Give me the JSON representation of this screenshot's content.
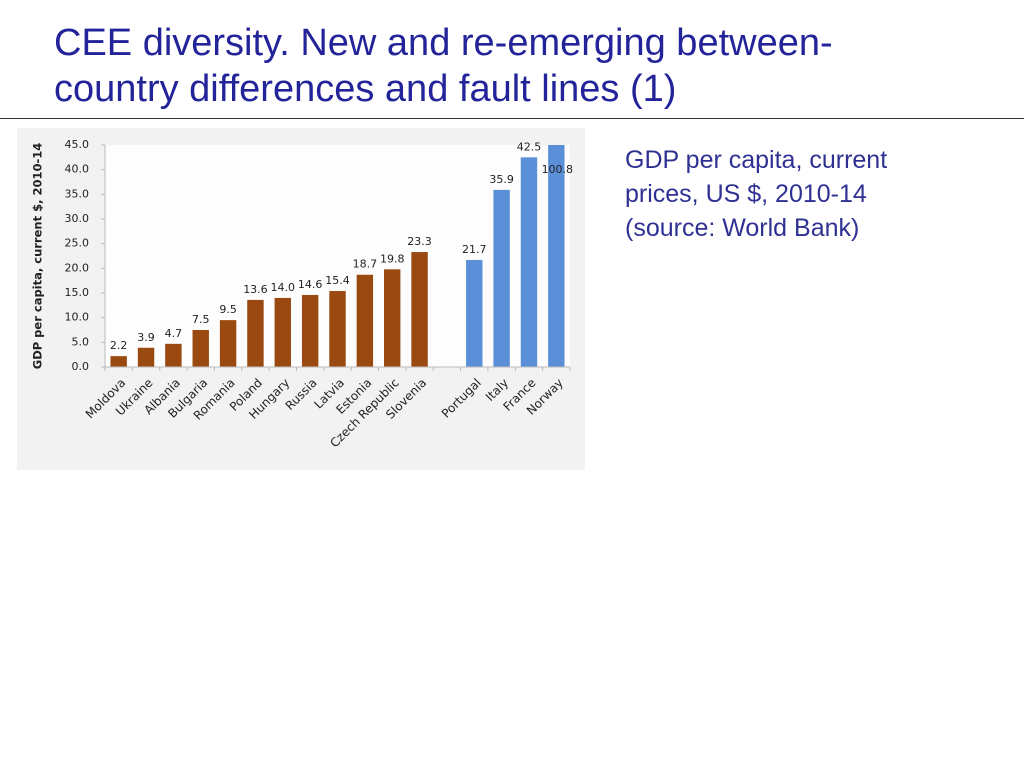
{
  "title": "CEE diversity. New and re-emerging between-country differences and fault lines (1)",
  "note": "GDP per capita, current prices, US $, 2010-14 (source: World Bank)",
  "chart_data": {
    "type": "bar",
    "y_label": "GDP per capita, current $, 2010-14",
    "categories": [
      "Moldova",
      "Ukraine",
      "Albania",
      "Bulgaria",
      "Romania",
      "Poland",
      "Hungary",
      "Russia",
      "Latvia",
      "Estonia",
      "Czech Republic",
      "Slovenia",
      null,
      "Portugal",
      "Italy",
      "France",
      "Norway"
    ],
    "values": [
      2.2,
      3.9,
      4.7,
      7.5,
      9.5,
      13.6,
      14.0,
      14.6,
      15.4,
      18.7,
      19.8,
      23.3,
      null,
      21.7,
      35.9,
      42.5,
      100.8
    ],
    "value_labels": [
      "2.2",
      "3.9",
      "4.7",
      "7.5",
      "9.5",
      "13.6",
      "14.0",
      "14.6",
      "15.4",
      "18.7",
      "19.8",
      "23.3",
      null,
      "21.7",
      "35.9",
      "42.5",
      "100.8"
    ],
    "colors": [
      "#9a4a10",
      "#9a4a10",
      "#9a4a10",
      "#9a4a10",
      "#9a4a10",
      "#9a4a10",
      "#9a4a10",
      "#9a4a10",
      "#9a4a10",
      "#9a4a10",
      "#9a4a10",
      "#9a4a10",
      null,
      "#5b90d8",
      "#5b90d8",
      "#5b90d8",
      "#5b90d8"
    ],
    "ylim": [
      0,
      45
    ],
    "yticks": [
      {
        "value": 0,
        "label": "0.0"
      },
      {
        "value": 5,
        "label": "5.0"
      },
      {
        "value": 10,
        "label": "10.0"
      },
      {
        "value": 15,
        "label": "15.0"
      },
      {
        "value": 20,
        "label": "20.0"
      },
      {
        "value": 25,
        "label": "25.0"
      },
      {
        "value": 30,
        "label": "30.0"
      },
      {
        "value": 35,
        "label": "35.0"
      },
      {
        "value": 40,
        "label": "40.0"
      },
      {
        "value": 45,
        "label": "45.0"
      }
    ],
    "grid": false
  }
}
